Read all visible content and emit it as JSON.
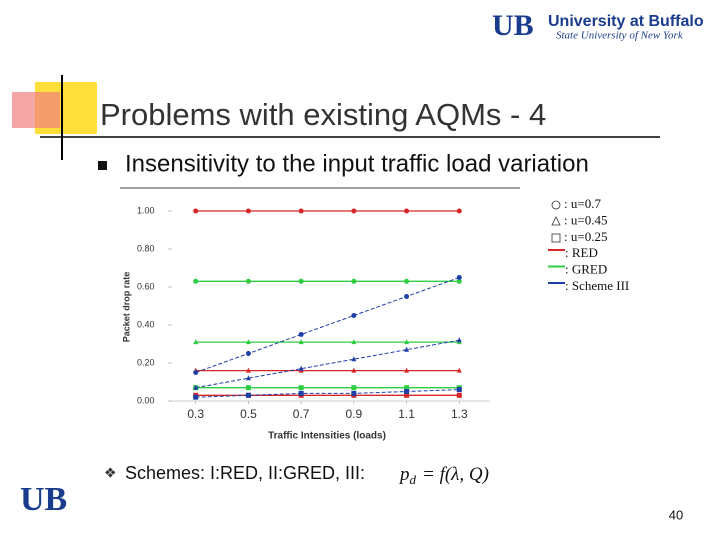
{
  "slide": {
    "logo": "UB",
    "university": "University at Buffalo",
    "subtitle": "State University of New York",
    "title": "Problems with existing AQMs - 4",
    "bullet": "Insensitivity to the input traffic load variation",
    "schemes": "Schemes: I:RED, II:GRED, III:",
    "formula": {
      "lhs": "p",
      "sub": "d",
      "rhs": "= f(λ, Q)"
    },
    "page": "40"
  },
  "chart_data": {
    "type": "line",
    "x_label": "Traffic Intensities (loads)",
    "y_label": "Packet drop rate",
    "x": [
      0.3,
      0.5,
      0.7,
      0.9,
      1.1,
      1.3
    ],
    "xlim": [
      0.1,
      1.5
    ],
    "xticks": [
      0.3,
      0.5,
      0.7,
      0.9,
      1.1,
      1.3
    ],
    "ylim": [
      0,
      1
    ],
    "yticks": [
      {
        "value": 0,
        "label": "0.00"
      },
      {
        "value": 0.2,
        "label": "0.20"
      },
      {
        "value": 0.4,
        "label": "0.40"
      },
      {
        "value": 0.6,
        "label": "0.60"
      },
      {
        "value": 0.8,
        "label": "0.80"
      },
      {
        "value": 1,
        "label": "1.00"
      }
    ],
    "series": [
      {
        "color": "#d62728",
        "marker": "circle",
        "dash": false,
        "values": [
          1.0,
          1.0,
          1.0,
          1.0,
          1.0,
          1.0
        ]
      },
      {
        "color": "#d62728",
        "marker": "triangle",
        "dash": false,
        "values": [
          0.16,
          0.16,
          0.16,
          0.16,
          0.16,
          0.16
        ]
      },
      {
        "color": "#d62728",
        "marker": "square",
        "dash": false,
        "values": [
          0.03,
          0.03,
          0.03,
          0.03,
          0.03,
          0.03
        ]
      },
      {
        "color": "#2ecc40",
        "marker": "circle",
        "dash": false,
        "values": [
          0.63,
          0.63,
          0.63,
          0.63,
          0.63,
          0.63
        ]
      },
      {
        "color": "#2ecc40",
        "marker": "triangle",
        "dash": false,
        "values": [
          0.31,
          0.31,
          0.31,
          0.31,
          0.31,
          0.31
        ]
      },
      {
        "color": "#2ecc40",
        "marker": "square",
        "dash": false,
        "values": [
          0.07,
          0.07,
          0.07,
          0.07,
          0.07,
          0.07
        ]
      },
      {
        "color": "#1f3fa8",
        "marker": "circle",
        "dash": true,
        "values": [
          0.15,
          0.25,
          0.35,
          0.45,
          0.55,
          0.65
        ]
      },
      {
        "color": "#1f3fa8",
        "marker": "triangle",
        "dash": true,
        "values": [
          0.07,
          0.12,
          0.17,
          0.22,
          0.27,
          0.32
        ]
      },
      {
        "color": "#1f3fa8",
        "marker": "square",
        "dash": true,
        "values": [
          0.02,
          0.03,
          0.04,
          0.04,
          0.05,
          0.06
        ]
      }
    ],
    "legend": {
      "markers": [
        {
          "marker": "circle",
          "label": ": u=0.7"
        },
        {
          "marker": "triangle",
          "label": ": u=0.45"
        },
        {
          "marker": "square",
          "label": ": u=0.25"
        }
      ],
      "lines": [
        {
          "color": "#d62728",
          "label": ": RED"
        },
        {
          "color": "#2ecc40",
          "label": ": GRED"
        },
        {
          "color": "#1f3fa8",
          "label": ": Scheme III"
        }
      ]
    }
  }
}
